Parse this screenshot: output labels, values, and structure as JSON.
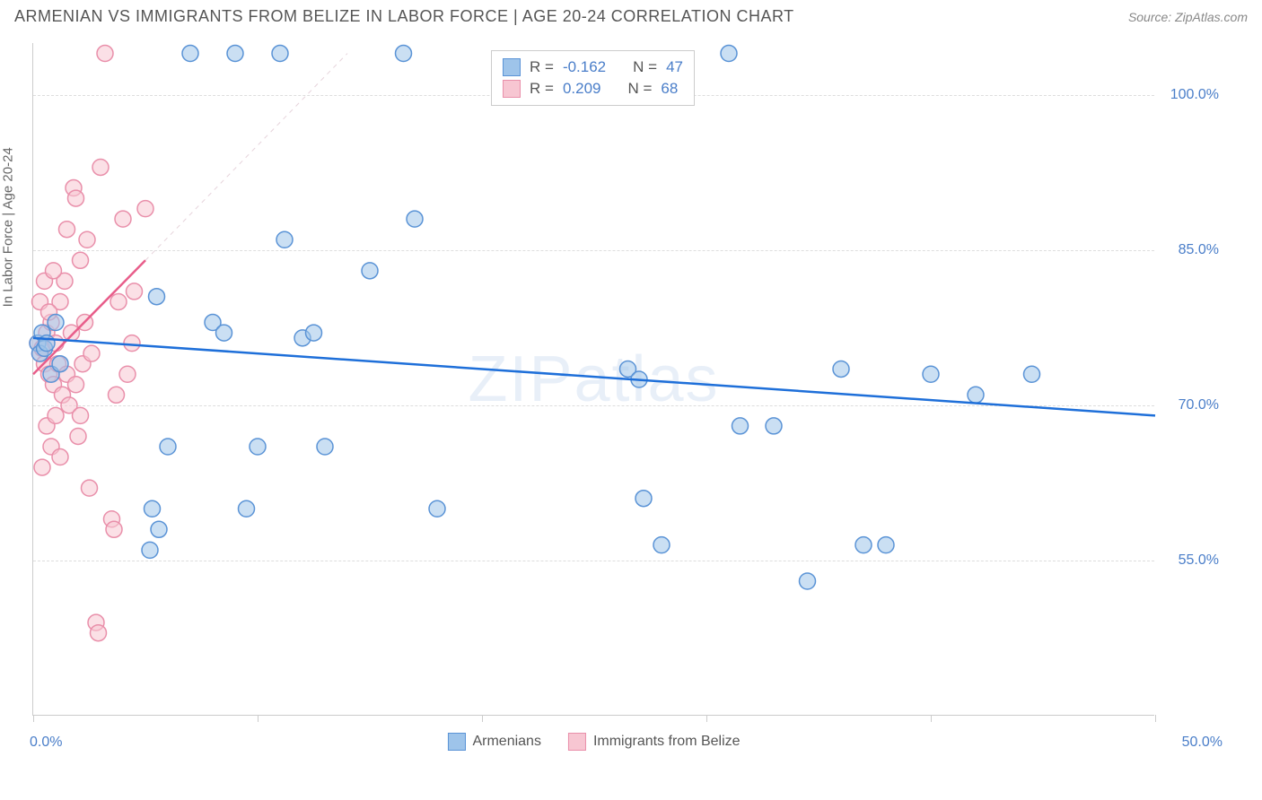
{
  "header": {
    "title": "ARMENIAN VS IMMIGRANTS FROM BELIZE IN LABOR FORCE | AGE 20-24 CORRELATION CHART",
    "source": "Source: ZipAtlas.com"
  },
  "axes": {
    "y_title": "In Labor Force | Age 20-24",
    "xlim": [
      0,
      50
    ],
    "ylim": [
      40,
      105
    ],
    "y_ticks": [
      55.0,
      70.0,
      85.0,
      100.0
    ],
    "y_tick_labels": [
      "55.0%",
      "70.0%",
      "85.0%",
      "100.0%"
    ],
    "x_ticks": [
      0,
      10,
      20,
      30,
      40,
      50
    ],
    "x_end_labels": {
      "start": "0.0%",
      "end": "50.0%"
    }
  },
  "colors": {
    "blue_fill": "#9ec4ea",
    "blue_stroke": "#5a93d6",
    "pink_fill": "#f7c6d2",
    "pink_stroke": "#e98faa",
    "trend_blue": "#1e6fd9",
    "trend_pink": "#e85d8a",
    "identity_line": "#e6d3db",
    "grid": "#dddddd",
    "axis": "#cccccc",
    "tick_text": "#4a7ec9",
    "title_text": "#555555",
    "background": "#ffffff"
  },
  "marker": {
    "radius": 9,
    "stroke_width": 1.5,
    "fill_opacity": 0.55
  },
  "stats": {
    "series1": {
      "r_label": "R =",
      "r_val": "-0.162",
      "n_label": "N =",
      "n_val": "47"
    },
    "series2": {
      "r_label": "R =",
      "r_val": "0.209",
      "n_label": "N =",
      "n_val": "68"
    }
  },
  "legend": {
    "series1": "Armenians",
    "series2": "Immigrants from Belize"
  },
  "watermark": "ZIPatlas",
  "trend_lines": {
    "blue": {
      "x1": 0,
      "y1": 76.5,
      "x2": 50,
      "y2": 69.0,
      "width": 2.5
    },
    "pink_solid": {
      "x1": 0,
      "y1": 73.0,
      "x2": 5,
      "y2": 84.0,
      "width": 2.5
    },
    "pink_dash": {
      "x1": 5,
      "y1": 84.0,
      "x2": 14,
      "y2": 104.0,
      "width": 1,
      "dash": "5,5"
    }
  },
  "series_blue": [
    [
      0.2,
      76
    ],
    [
      0.3,
      75
    ],
    [
      0.4,
      77
    ],
    [
      0.5,
      75.5
    ],
    [
      0.6,
      76
    ],
    [
      0.8,
      73
    ],
    [
      1.0,
      78
    ],
    [
      1.2,
      74
    ],
    [
      5.2,
      56
    ],
    [
      5.3,
      60
    ],
    [
      5.5,
      80.5
    ],
    [
      5.6,
      58
    ],
    [
      6.0,
      66
    ],
    [
      7.0,
      104
    ],
    [
      8.0,
      78
    ],
    [
      8.5,
      77
    ],
    [
      9.0,
      104
    ],
    [
      9.5,
      60
    ],
    [
      10.0,
      66
    ],
    [
      11.0,
      104
    ],
    [
      11.2,
      86
    ],
    [
      12.0,
      76.5
    ],
    [
      12.5,
      77
    ],
    [
      13.0,
      66
    ],
    [
      15.0,
      83
    ],
    [
      16.5,
      104
    ],
    [
      17.0,
      88
    ],
    [
      18.0,
      60
    ],
    [
      26.5,
      73.5
    ],
    [
      27.0,
      72.5
    ],
    [
      27.2,
      61
    ],
    [
      28.0,
      56.5
    ],
    [
      31.0,
      104
    ],
    [
      31.5,
      68
    ],
    [
      33.0,
      68
    ],
    [
      34.5,
      53
    ],
    [
      36.0,
      73.5
    ],
    [
      37.0,
      56.5
    ],
    [
      38.0,
      56.5
    ],
    [
      40.0,
      73
    ],
    [
      42.0,
      71
    ],
    [
      44.5,
      73
    ]
  ],
  "series_pink": [
    [
      0.2,
      76
    ],
    [
      0.3,
      75
    ],
    [
      0.4,
      75.5
    ],
    [
      0.5,
      74
    ],
    [
      0.6,
      77
    ],
    [
      0.7,
      73
    ],
    [
      0.8,
      78
    ],
    [
      0.9,
      72
    ],
    [
      1.0,
      76
    ],
    [
      1.1,
      74
    ],
    [
      1.2,
      80
    ],
    [
      1.3,
      71
    ],
    [
      1.4,
      82
    ],
    [
      1.5,
      87
    ],
    [
      1.6,
      70
    ],
    [
      1.8,
      91
    ],
    [
      1.9,
      90
    ],
    [
      2.0,
      67
    ],
    [
      2.1,
      84
    ],
    [
      2.2,
      74
    ],
    [
      2.3,
      78
    ],
    [
      2.4,
      86
    ],
    [
      2.5,
      62
    ],
    [
      2.6,
      75
    ],
    [
      2.8,
      49
    ],
    [
      2.9,
      48
    ],
    [
      3.0,
      93
    ],
    [
      3.2,
      104
    ],
    [
      3.5,
      59
    ],
    [
      3.6,
      58
    ],
    [
      3.7,
      71
    ],
    [
      3.8,
      80
    ],
    [
      4.0,
      88
    ],
    [
      4.2,
      73
    ],
    [
      4.4,
      76
    ],
    [
      4.5,
      81
    ],
    [
      5.0,
      89
    ],
    [
      0.4,
      64
    ],
    [
      0.6,
      68
    ],
    [
      0.8,
      66
    ],
    [
      1.0,
      69
    ],
    [
      1.2,
      65
    ],
    [
      1.5,
      73
    ],
    [
      1.7,
      77
    ],
    [
      1.9,
      72
    ],
    [
      2.1,
      69
    ],
    [
      0.3,
      80
    ],
    [
      0.5,
      82
    ],
    [
      0.7,
      79
    ],
    [
      0.9,
      83
    ]
  ]
}
